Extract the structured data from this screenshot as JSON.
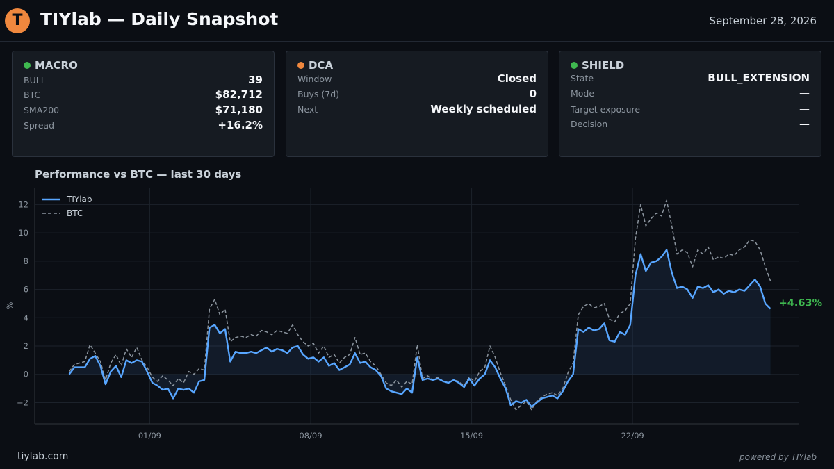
{
  "header": {
    "logo_letter": "T",
    "title": "TIYlab — Daily Snapshot",
    "date": "September 28, 2026"
  },
  "cards": [
    {
      "title": "MACRO",
      "status_color": "#3fb950",
      "rows": [
        {
          "label": "BULL",
          "value": "39"
        },
        {
          "label": "BTC",
          "value": "$82,712"
        },
        {
          "label": "SMA200",
          "value": "$71,180"
        },
        {
          "label": "Spread",
          "value": "+16.2%"
        }
      ]
    },
    {
      "title": "DCA",
      "status_color": "#f0883e",
      "rows": [
        {
          "label": "Window",
          "value": "Closed"
        },
        {
          "label": "Buys (7d)",
          "value": "0"
        },
        {
          "label": "Next",
          "value": "Weekly scheduled"
        }
      ]
    },
    {
      "title": "SHIELD",
      "status_color": "#3fb950",
      "rows": [
        {
          "label": "State",
          "value": "BULL_EXTENSION"
        },
        {
          "label": "Mode",
          "value": "—"
        },
        {
          "label": "Target exposure",
          "value": "—"
        },
        {
          "label": "Decision",
          "value": "—"
        }
      ]
    }
  ],
  "chart_title": "Performance vs BTC — last 30 days",
  "chart_data": {
    "type": "line",
    "title": "Performance vs BTC — last 30 days",
    "xlabel": "",
    "ylabel": "%",
    "x_start": "2026-08-28T12:00",
    "x_end": "2026-09-28T00:00",
    "x_tick_labels": [
      {
        "label": "01/09",
        "x": "2026-09-01"
      },
      {
        "label": "08/09",
        "x": "2026-09-08"
      },
      {
        "label": "15/09",
        "x": "2026-09-15"
      },
      {
        "label": "22/09",
        "x": "2026-09-22"
      }
    ],
    "xlim": [
      "2026-08-27T00:00",
      "2026-09-29T06:00"
    ],
    "ylim": [
      -3.5,
      13.2
    ],
    "y_ticks": [
      -2,
      0,
      2,
      4,
      6,
      8,
      10,
      12
    ],
    "grid": true,
    "legend": "top-left",
    "series": [
      {
        "name": "TIYlab",
        "color": "#58a6ff",
        "style": "solid",
        "values": [
          0.0,
          0.5,
          0.5,
          0.5,
          1.1,
          1.3,
          0.6,
          -0.7,
          0.2,
          0.6,
          -0.2,
          1.0,
          0.8,
          1.0,
          0.9,
          0.2,
          -0.6,
          -0.8,
          -1.1,
          -1.0,
          -1.7,
          -1.0,
          -1.1,
          -1.0,
          -1.3,
          -0.5,
          -0.4,
          3.3,
          3.5,
          2.9,
          3.2,
          0.9,
          1.6,
          1.5,
          1.5,
          1.6,
          1.5,
          1.7,
          1.9,
          1.6,
          1.8,
          1.7,
          1.5,
          1.9,
          2.0,
          1.4,
          1.1,
          1.2,
          0.9,
          1.2,
          0.6,
          0.8,
          0.3,
          0.5,
          0.7,
          1.5,
          0.8,
          0.9,
          0.5,
          0.3,
          -0.1,
          -1.0,
          -1.2,
          -1.3,
          -1.4,
          -1.0,
          -1.3,
          1.2,
          -0.4,
          -0.3,
          -0.4,
          -0.3,
          -0.5,
          -0.6,
          -0.4,
          -0.6,
          -0.9,
          -0.3,
          -0.8,
          -0.3,
          0.0,
          1.0,
          0.5,
          -0.3,
          -1.0,
          -2.2,
          -1.9,
          -2.0,
          -1.8,
          -2.3,
          -2.0,
          -1.7,
          -1.6,
          -1.5,
          -1.7,
          -1.2,
          -0.5,
          0.0,
          3.2,
          3.0,
          3.3,
          3.1,
          3.2,
          3.6,
          2.4,
          2.3,
          3.0,
          2.8,
          3.5,
          7.0,
          8.5,
          7.3,
          7.9,
          8.0,
          8.3,
          8.8,
          7.2,
          6.1,
          6.2,
          6.0,
          5.4,
          6.2,
          6.1,
          6.3,
          5.8,
          6.0,
          5.7,
          5.9,
          5.8,
          6.0,
          5.9,
          6.3,
          6.7,
          6.2,
          5.0,
          4.63
        ]
      },
      {
        "name": "BTC",
        "color": "#8b949e",
        "style": "dashed",
        "values": [
          0.2,
          0.7,
          0.8,
          0.9,
          2.1,
          1.5,
          0.9,
          -0.4,
          0.8,
          1.4,
          0.6,
          1.8,
          1.2,
          1.9,
          1.0,
          0.5,
          -0.2,
          -0.5,
          -0.1,
          -0.4,
          -0.8,
          -0.3,
          -0.6,
          0.2,
          0.0,
          0.4,
          0.3,
          4.6,
          5.3,
          4.2,
          4.6,
          2.3,
          2.6,
          2.7,
          2.6,
          2.8,
          2.7,
          3.1,
          3.0,
          2.8,
          3.1,
          3.0,
          2.9,
          3.5,
          2.8,
          2.3,
          2.0,
          2.2,
          1.5,
          2.0,
          1.2,
          1.4,
          0.8,
          1.2,
          1.4,
          2.6,
          1.4,
          1.5,
          0.9,
          0.6,
          0.0,
          -0.6,
          -0.8,
          -0.4,
          -0.9,
          -0.5,
          -0.7,
          2.1,
          -0.3,
          -0.1,
          -0.4,
          -0.2,
          -0.5,
          -0.6,
          -0.4,
          -0.5,
          -0.8,
          -0.2,
          -0.5,
          0.2,
          0.5,
          2.0,
          1.2,
          0.1,
          -0.8,
          -1.8,
          -2.5,
          -2.2,
          -1.9,
          -2.5,
          -1.9,
          -1.6,
          -1.4,
          -1.3,
          -1.5,
          -1.0,
          0.1,
          0.8,
          4.2,
          4.8,
          5.0,
          4.7,
          4.8,
          5.0,
          3.9,
          3.7,
          4.3,
          4.5,
          5.0,
          9.6,
          12.0,
          10.5,
          11.0,
          11.4,
          11.2,
          12.3,
          10.5,
          8.5,
          8.8,
          8.6,
          7.6,
          8.8,
          8.5,
          9.0,
          8.1,
          8.3,
          8.2,
          8.5,
          8.4,
          8.8,
          9.0,
          9.5,
          9.4,
          8.8,
          7.6,
          6.6
        ]
      }
    ],
    "end_label": "+4.63%",
    "end_label_color": "#3fb950"
  },
  "footer": {
    "left": "tiylab.com",
    "right": "powered by TIYlab"
  }
}
